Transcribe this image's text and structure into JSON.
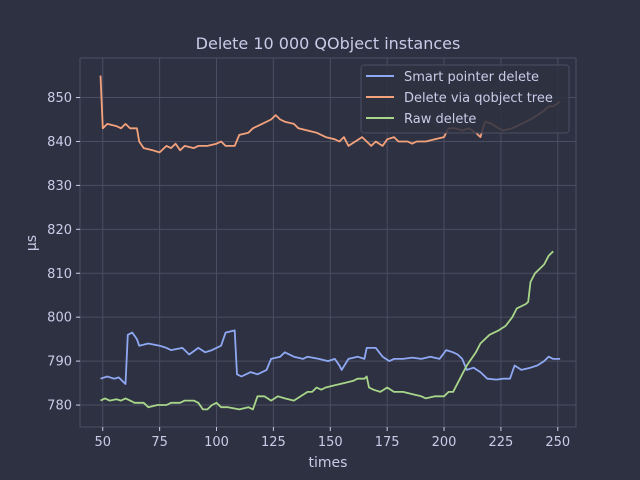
{
  "chart_data": {
    "type": "line",
    "title": "Delete 10 000 QObject instances",
    "xlabel": "times",
    "ylabel": "µs",
    "xlim": [
      40,
      258
    ],
    "ylim": [
      775,
      859
    ],
    "x_ticks": [
      50,
      75,
      100,
      125,
      150,
      175,
      200,
      225,
      250
    ],
    "y_ticks": [
      780,
      790,
      800,
      810,
      820,
      830,
      840,
      850
    ],
    "grid": true,
    "legend_position": "top-right",
    "series": [
      {
        "name": "Smart pointer delete",
        "color": "#8fa8f4",
        "points": [
          [
            49,
            786
          ],
          [
            52,
            786.5
          ],
          [
            55,
            786
          ],
          [
            57,
            786.3
          ],
          [
            59,
            785.3
          ],
          [
            60,
            784.8
          ],
          [
            61,
            796
          ],
          [
            63,
            796.5
          ],
          [
            65,
            795
          ],
          [
            66,
            793.5
          ],
          [
            70,
            794
          ],
          [
            75,
            793.5
          ],
          [
            78,
            793
          ],
          [
            80,
            792.5
          ],
          [
            85,
            793
          ],
          [
            88,
            791.5
          ],
          [
            92,
            793
          ],
          [
            95,
            792
          ],
          [
            98,
            792.5
          ],
          [
            102,
            793.5
          ],
          [
            104,
            796.5
          ],
          [
            108,
            797
          ],
          [
            109,
            787
          ],
          [
            111,
            786.5
          ],
          [
            115,
            787.5
          ],
          [
            118,
            787
          ],
          [
            122,
            788
          ],
          [
            124,
            790.5
          ],
          [
            128,
            791
          ],
          [
            130,
            792
          ],
          [
            134,
            791
          ],
          [
            138,
            790.5
          ],
          [
            140,
            791
          ],
          [
            145,
            790.5
          ],
          [
            149,
            790
          ],
          [
            152,
            790.5
          ],
          [
            154,
            789
          ],
          [
            155,
            788
          ],
          [
            158,
            790.5
          ],
          [
            162,
            791
          ],
          [
            165,
            790.5
          ],
          [
            166,
            793
          ],
          [
            170,
            793
          ],
          [
            173,
            791
          ],
          [
            176,
            790
          ],
          [
            178,
            790.5
          ],
          [
            182,
            790.5
          ],
          [
            186,
            790.8
          ],
          [
            190,
            790.5
          ],
          [
            194,
            791
          ],
          [
            198,
            790.5
          ],
          [
            201,
            792.5
          ],
          [
            204,
            792
          ],
          [
            206,
            791.5
          ],
          [
            208,
            790.5
          ],
          [
            210,
            788
          ],
          [
            213,
            788.5
          ],
          [
            216,
            787.5
          ],
          [
            219,
            786
          ],
          [
            223,
            785.8
          ],
          [
            226,
            786
          ],
          [
            229,
            786
          ],
          [
            231,
            789
          ],
          [
            234,
            788
          ],
          [
            238,
            788.5
          ],
          [
            241,
            789
          ],
          [
            244,
            790
          ],
          [
            246,
            791
          ],
          [
            248,
            790.5
          ],
          [
            251,
            790.5
          ]
        ]
      },
      {
        "name": "Delete via qobject tree",
        "color": "#f4a27c",
        "points": [
          [
            49,
            855
          ],
          [
            50,
            843
          ],
          [
            52,
            844
          ],
          [
            56,
            843.5
          ],
          [
            58,
            843
          ],
          [
            60,
            844
          ],
          [
            62,
            843
          ],
          [
            65,
            843
          ],
          [
            66,
            840
          ],
          [
            68,
            838.5
          ],
          [
            72,
            838
          ],
          [
            75,
            837.5
          ],
          [
            78,
            839
          ],
          [
            80,
            838.5
          ],
          [
            82,
            839.5
          ],
          [
            84,
            838
          ],
          [
            86,
            839
          ],
          [
            90,
            838.5
          ],
          [
            92,
            839
          ],
          [
            96,
            839
          ],
          [
            100,
            839.5
          ],
          [
            102,
            840
          ],
          [
            104,
            839
          ],
          [
            108,
            839
          ],
          [
            110,
            841.5
          ],
          [
            114,
            842
          ],
          [
            116,
            843
          ],
          [
            120,
            844
          ],
          [
            124,
            845
          ],
          [
            126,
            846
          ],
          [
            128,
            845
          ],
          [
            130,
            844.5
          ],
          [
            134,
            844
          ],
          [
            136,
            843
          ],
          [
            140,
            842.5
          ],
          [
            144,
            842
          ],
          [
            148,
            841
          ],
          [
            152,
            840.5
          ],
          [
            154,
            840
          ],
          [
            156,
            841
          ],
          [
            158,
            839
          ],
          [
            161,
            840
          ],
          [
            164,
            841
          ],
          [
            166,
            840
          ],
          [
            168,
            839
          ],
          [
            170,
            840
          ],
          [
            173,
            839
          ],
          [
            175,
            840.5
          ],
          [
            178,
            841
          ],
          [
            180,
            840
          ],
          [
            184,
            840
          ],
          [
            186,
            839.5
          ],
          [
            188,
            840
          ],
          [
            192,
            840
          ],
          [
            196,
            840.5
          ],
          [
            200,
            841
          ],
          [
            202,
            843
          ],
          [
            205,
            843
          ],
          [
            208,
            842.5
          ],
          [
            211,
            843
          ],
          [
            214,
            842
          ],
          [
            216,
            841
          ],
          [
            218,
            844.5
          ],
          [
            221,
            844
          ],
          [
            224,
            843
          ],
          [
            226,
            842.5
          ],
          [
            230,
            843
          ],
          [
            234,
            844
          ],
          [
            238,
            845
          ],
          [
            241,
            846
          ],
          [
            244,
            847
          ],
          [
            246,
            848
          ],
          [
            248,
            848
          ],
          [
            251,
            849
          ]
        ]
      },
      {
        "name": "Raw delete",
        "color": "#a8d68a",
        "points": [
          [
            49,
            781
          ],
          [
            51,
            781.5
          ],
          [
            53,
            781
          ],
          [
            56,
            781.3
          ],
          [
            58,
            781
          ],
          [
            60,
            781.5
          ],
          [
            62,
            781
          ],
          [
            64,
            780.5
          ],
          [
            68,
            780.5
          ],
          [
            70,
            779.5
          ],
          [
            74,
            780
          ],
          [
            78,
            780
          ],
          [
            80,
            780.5
          ],
          [
            84,
            780.5
          ],
          [
            86,
            781
          ],
          [
            90,
            781
          ],
          [
            92,
            780.5
          ],
          [
            94,
            779
          ],
          [
            96,
            779
          ],
          [
            98,
            780
          ],
          [
            100,
            780.5
          ],
          [
            102,
            779.5
          ],
          [
            105,
            779.5
          ],
          [
            110,
            779
          ],
          [
            114,
            779.5
          ],
          [
            116,
            779
          ],
          [
            118,
            782
          ],
          [
            121,
            782
          ],
          [
            124,
            781
          ],
          [
            127,
            782
          ],
          [
            130,
            781.5
          ],
          [
            134,
            781
          ],
          [
            137,
            782
          ],
          [
            140,
            783
          ],
          [
            142,
            783
          ],
          [
            144,
            784
          ],
          [
            146,
            783.5
          ],
          [
            148,
            784
          ],
          [
            152,
            784.5
          ],
          [
            156,
            785
          ],
          [
            160,
            785.5
          ],
          [
            162,
            786
          ],
          [
            165,
            786
          ],
          [
            166,
            786.5
          ],
          [
            167,
            784
          ],
          [
            169,
            783.5
          ],
          [
            172,
            783
          ],
          [
            175,
            784
          ],
          [
            178,
            783
          ],
          [
            182,
            783
          ],
          [
            186,
            782.5
          ],
          [
            190,
            782
          ],
          [
            192,
            781.5
          ],
          [
            196,
            782
          ],
          [
            200,
            782
          ],
          [
            202,
            783
          ],
          [
            204,
            783
          ],
          [
            206,
            785
          ],
          [
            208,
            787
          ],
          [
            210,
            789
          ],
          [
            214,
            792
          ],
          [
            216,
            794
          ],
          [
            220,
            796
          ],
          [
            224,
            797
          ],
          [
            227,
            798
          ],
          [
            230,
            800
          ],
          [
            232,
            802
          ],
          [
            236,
            803
          ],
          [
            237,
            803.5
          ],
          [
            238,
            808
          ],
          [
            240,
            810
          ],
          [
            242,
            811
          ],
          [
            244,
            812
          ],
          [
            246,
            814
          ],
          [
            248,
            815
          ]
        ]
      }
    ]
  }
}
